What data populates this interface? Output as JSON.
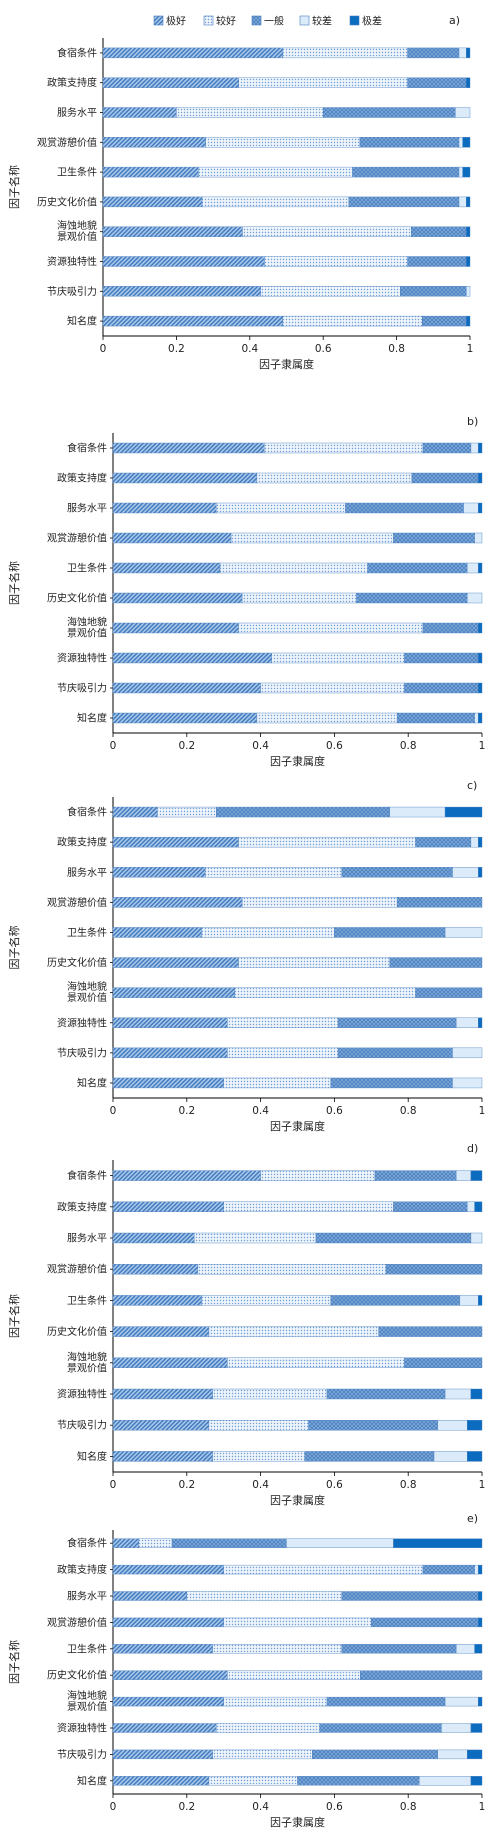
{
  "legend": {
    "items": [
      {
        "label": "极好",
        "color": "#5d8fc9",
        "pattern": "diagonal"
      },
      {
        "label": "较好",
        "color": "#e6eef8",
        "pattern": "dots"
      },
      {
        "label": "一般",
        "color": "#8fb6e0",
        "pattern": "crosshatch"
      },
      {
        "label": "较差",
        "color": "#dcebfa",
        "pattern": "solid-light"
      },
      {
        "label": "极差",
        "color": "#0b6bbf",
        "pattern": "solid-dark"
      }
    ]
  },
  "chart_data": [
    {
      "type": "bar",
      "orientation": "horizontal",
      "stacked": true,
      "panel_label": "a)",
      "categories": [
        "食宿条件",
        "政策支持度",
        "服务水平",
        "观赏游憩价值",
        "卫生条件",
        "历史文化价值",
        "海蚀地貌景观价值",
        "资源独特性",
        "节庆吸引力",
        "知名度"
      ],
      "series": [
        {
          "name": "极好",
          "values": [
            0.49,
            0.37,
            0.2,
            0.28,
            0.26,
            0.27,
            0.38,
            0.44,
            0.43,
            0.49
          ]
        },
        {
          "name": "较好",
          "values": [
            0.34,
            0.46,
            0.4,
            0.42,
            0.42,
            0.4,
            0.46,
            0.39,
            0.38,
            0.38
          ]
        },
        {
          "name": "一般",
          "values": [
            0.14,
            0.16,
            0.36,
            0.27,
            0.29,
            0.3,
            0.15,
            0.16,
            0.18,
            0.12
          ]
        },
        {
          "name": "较差",
          "values": [
            0.02,
            0.0,
            0.04,
            0.01,
            0.01,
            0.02,
            0.0,
            0.0,
            0.01,
            0.0
          ]
        },
        {
          "name": "极差",
          "values": [
            0.01,
            0.01,
            0.0,
            0.02,
            0.02,
            0.01,
            0.01,
            0.01,
            0.0,
            0.01
          ]
        }
      ],
      "xlabel": "因子隶属度",
      "ylabel": "因子名称",
      "xlim": [
        0,
        1
      ],
      "xticks": [
        "0",
        "0.2",
        "0.4",
        "0.6",
        "0.8",
        "1"
      ]
    },
    {
      "type": "bar",
      "orientation": "horizontal",
      "stacked": true,
      "panel_label": "b)",
      "categories": [
        "食宿条件",
        "政策支持度",
        "服务水平",
        "观赏游憩价值",
        "卫生条件",
        "历史文化价值",
        "海蚀地貌景观价值",
        "资源独特性",
        "节庆吸引力",
        "知名度"
      ],
      "series": [
        {
          "name": "极好",
          "values": [
            0.41,
            0.39,
            0.28,
            0.32,
            0.29,
            0.35,
            0.34,
            0.43,
            0.4,
            0.39
          ]
        },
        {
          "name": "较好",
          "values": [
            0.43,
            0.42,
            0.35,
            0.44,
            0.4,
            0.31,
            0.5,
            0.36,
            0.39,
            0.38
          ]
        },
        {
          "name": "一般",
          "values": [
            0.13,
            0.18,
            0.32,
            0.22,
            0.27,
            0.3,
            0.15,
            0.2,
            0.2,
            0.21
          ]
        },
        {
          "name": "较差",
          "values": [
            0.02,
            0.0,
            0.04,
            0.02,
            0.03,
            0.04,
            0.0,
            0.0,
            0.0,
            0.01
          ]
        },
        {
          "name": "极差",
          "values": [
            0.01,
            0.01,
            0.01,
            0.0,
            0.01,
            0.0,
            0.01,
            0.01,
            0.01,
            0.01
          ]
        }
      ],
      "xlabel": "因子隶属度",
      "ylabel": "因子名称",
      "xlim": [
        0,
        1
      ],
      "xticks": [
        "0",
        "0.2",
        "0.4",
        "0.6",
        "0.8",
        "1"
      ]
    },
    {
      "type": "bar",
      "orientation": "horizontal",
      "stacked": true,
      "panel_label": "c)",
      "categories": [
        "食宿条件",
        "政策支持度",
        "服务水平",
        "观赏游憩价值",
        "卫生条件",
        "历史文化价值",
        "海蚀地貌景观价值",
        "资源独特性",
        "节庆吸引力",
        "知名度"
      ],
      "series": [
        {
          "name": "极好",
          "values": [
            0.12,
            0.34,
            0.25,
            0.35,
            0.24,
            0.34,
            0.33,
            0.31,
            0.31,
            0.3
          ]
        },
        {
          "name": "较好",
          "values": [
            0.16,
            0.48,
            0.37,
            0.42,
            0.36,
            0.41,
            0.49,
            0.3,
            0.3,
            0.29
          ]
        },
        {
          "name": "一般",
          "values": [
            0.47,
            0.15,
            0.3,
            0.23,
            0.3,
            0.25,
            0.18,
            0.32,
            0.31,
            0.33
          ]
        },
        {
          "name": "较差",
          "values": [
            0.15,
            0.02,
            0.07,
            0.0,
            0.1,
            0.0,
            0.0,
            0.06,
            0.08,
            0.08
          ]
        },
        {
          "name": "极差",
          "values": [
            0.1,
            0.01,
            0.01,
            0.0,
            0.0,
            0.0,
            0.0,
            0.01,
            0.0,
            0.0
          ]
        }
      ],
      "xlabel": "因子隶属度",
      "ylabel": "因子名称",
      "xlim": [
        0,
        1
      ],
      "xticks": [
        "0",
        "0.2",
        "0.4",
        "0.6",
        "0.8",
        "1"
      ]
    },
    {
      "type": "bar",
      "orientation": "horizontal",
      "stacked": true,
      "panel_label": "d)",
      "categories": [
        "食宿条件",
        "政策支持度",
        "服务水平",
        "观赏游憩价值",
        "卫生条件",
        "历史文化价值",
        "海蚀地貌景观价值",
        "资源独特性",
        "节庆吸引力",
        "知名度"
      ],
      "series": [
        {
          "name": "极好",
          "values": [
            0.4,
            0.3,
            0.22,
            0.23,
            0.24,
            0.26,
            0.31,
            0.27,
            0.26,
            0.27
          ]
        },
        {
          "name": "较好",
          "values": [
            0.31,
            0.46,
            0.33,
            0.51,
            0.35,
            0.46,
            0.48,
            0.31,
            0.27,
            0.25
          ]
        },
        {
          "name": "一般",
          "values": [
            0.22,
            0.2,
            0.42,
            0.26,
            0.35,
            0.28,
            0.21,
            0.32,
            0.35,
            0.35
          ]
        },
        {
          "name": "较差",
          "values": [
            0.04,
            0.02,
            0.03,
            0.0,
            0.05,
            0.0,
            0.0,
            0.07,
            0.08,
            0.09
          ]
        },
        {
          "name": "极差",
          "values": [
            0.03,
            0.02,
            0.0,
            0.0,
            0.01,
            0.0,
            0.0,
            0.03,
            0.04,
            0.04
          ]
        }
      ],
      "xlabel": "因子隶属度",
      "ylabel": "因子名称",
      "xlim": [
        0,
        1
      ],
      "xticks": [
        "0",
        "0.2",
        "0.4",
        "0.6",
        "0.8",
        "1"
      ]
    },
    {
      "type": "bar",
      "orientation": "horizontal",
      "stacked": true,
      "panel_label": "e)",
      "categories": [
        "食宿条件",
        "政策支持度",
        "服务水平",
        "观赏游憩价值",
        "卫生条件",
        "历史文化价值",
        "海蚀地貌景观价值",
        "资源独特性",
        "节庆吸引力",
        "知名度"
      ],
      "series": [
        {
          "name": "极好",
          "values": [
            0.07,
            0.3,
            0.2,
            0.3,
            0.27,
            0.31,
            0.3,
            0.28,
            0.27,
            0.26
          ]
        },
        {
          "name": "较好",
          "values": [
            0.09,
            0.54,
            0.42,
            0.4,
            0.35,
            0.36,
            0.28,
            0.28,
            0.27,
            0.24
          ]
        },
        {
          "name": "一般",
          "values": [
            0.31,
            0.14,
            0.37,
            0.29,
            0.31,
            0.33,
            0.32,
            0.33,
            0.34,
            0.33
          ]
        },
        {
          "name": "较差",
          "values": [
            0.29,
            0.01,
            0.0,
            0.0,
            0.05,
            0.0,
            0.09,
            0.08,
            0.08,
            0.14
          ]
        },
        {
          "name": "极差",
          "values": [
            0.24,
            0.01,
            0.01,
            0.01,
            0.02,
            0.0,
            0.01,
            0.03,
            0.04,
            0.03
          ]
        }
      ],
      "xlabel": "因子隶属度",
      "ylabel": "因子名称",
      "xlim": [
        0,
        1
      ],
      "xticks": [
        "0",
        "0.2",
        "0.4",
        "0.6",
        "0.8",
        "1"
      ]
    }
  ]
}
